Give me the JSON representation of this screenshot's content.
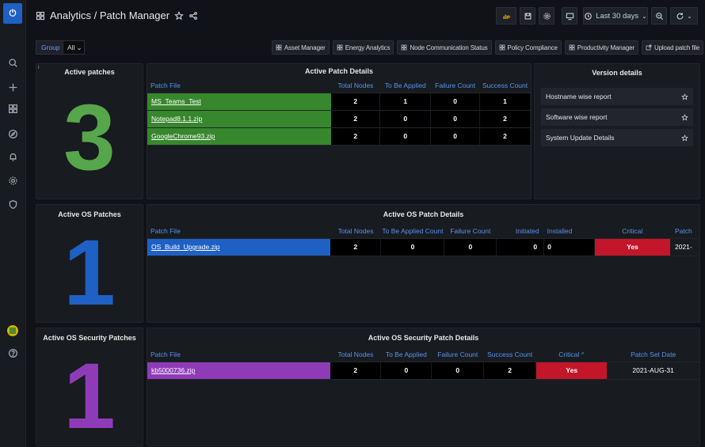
{
  "header": {
    "title": "Analytics / Patch Manager",
    "time_range": "Last 30 days"
  },
  "variables": {
    "label": "Group",
    "value": "All"
  },
  "links": [
    "Asset Manager",
    "Energy Analytics",
    "Node Communication Status",
    "Policy Compliance",
    "Productivity Manager",
    "Upload patch file"
  ],
  "active_patches": {
    "title": "Active patches",
    "value": "3",
    "color": "#56a64b"
  },
  "active_patch_details": {
    "title": "Active Patch Details",
    "columns": [
      "Patch File",
      "Total Nodes",
      "To Be Applied",
      "Failure Count",
      "Success Count"
    ],
    "rows": [
      [
        "MS_Teams_Test",
        "2",
        "1",
        "0",
        "1"
      ],
      [
        "Notepad8.1.1.zip",
        "2",
        "0",
        "0",
        "2"
      ],
      [
        "GoogleChrome93.zip",
        "2",
        "0",
        "0",
        "2"
      ]
    ],
    "file_color": "#37872d"
  },
  "version_details": {
    "title": "Version details",
    "items": [
      "Hostname wise report",
      "Software wise report",
      "System Update Details"
    ]
  },
  "active_os_patches": {
    "title": "Active OS Patches",
    "value": "1",
    "color": "#1f60c4"
  },
  "active_os_patch_details": {
    "title": "Active OS Patch Details",
    "columns": [
      "Patch File",
      "Total Nodes",
      "To Be Applied Count",
      "Failure Count",
      "Initiated",
      "Installed",
      "Critical",
      "Patch"
    ],
    "rows": [
      [
        "OS_Build_Upgrade.zip",
        "2",
        "0",
        "0",
        "0",
        "0",
        "Yes",
        "2021-"
      ]
    ],
    "file_color": "#1f60c4",
    "critical_color": "#c4162a"
  },
  "active_os_security_patches": {
    "title": "Active OS Security Patches",
    "value": "1",
    "color": "#8f3bb8"
  },
  "active_os_security_patch_details": {
    "title": "Active OS Security Patch Details",
    "columns": [
      "Patch File",
      "Total Nodes",
      "To Be Applied",
      "Failure Count",
      "Success Count",
      "Critical ^",
      "Patch Set Date"
    ],
    "rows": [
      [
        "kb5000736.zip",
        "2",
        "0",
        "0",
        "2",
        "Yes",
        "2021-AUG-31"
      ]
    ],
    "file_color": "#8f3bb8",
    "critical_color": "#c4162a"
  },
  "icons": {
    "rail": [
      "search-icon",
      "plus-icon",
      "dashboards-icon",
      "explore-icon",
      "bell-icon",
      "gear-icon",
      "shield-icon",
      "help-icon"
    ],
    "toolbar": [
      "add-panel-icon",
      "save-icon",
      "settings-icon",
      "tv-icon",
      "clock-icon",
      "zoom-out-icon",
      "refresh-icon"
    ]
  }
}
